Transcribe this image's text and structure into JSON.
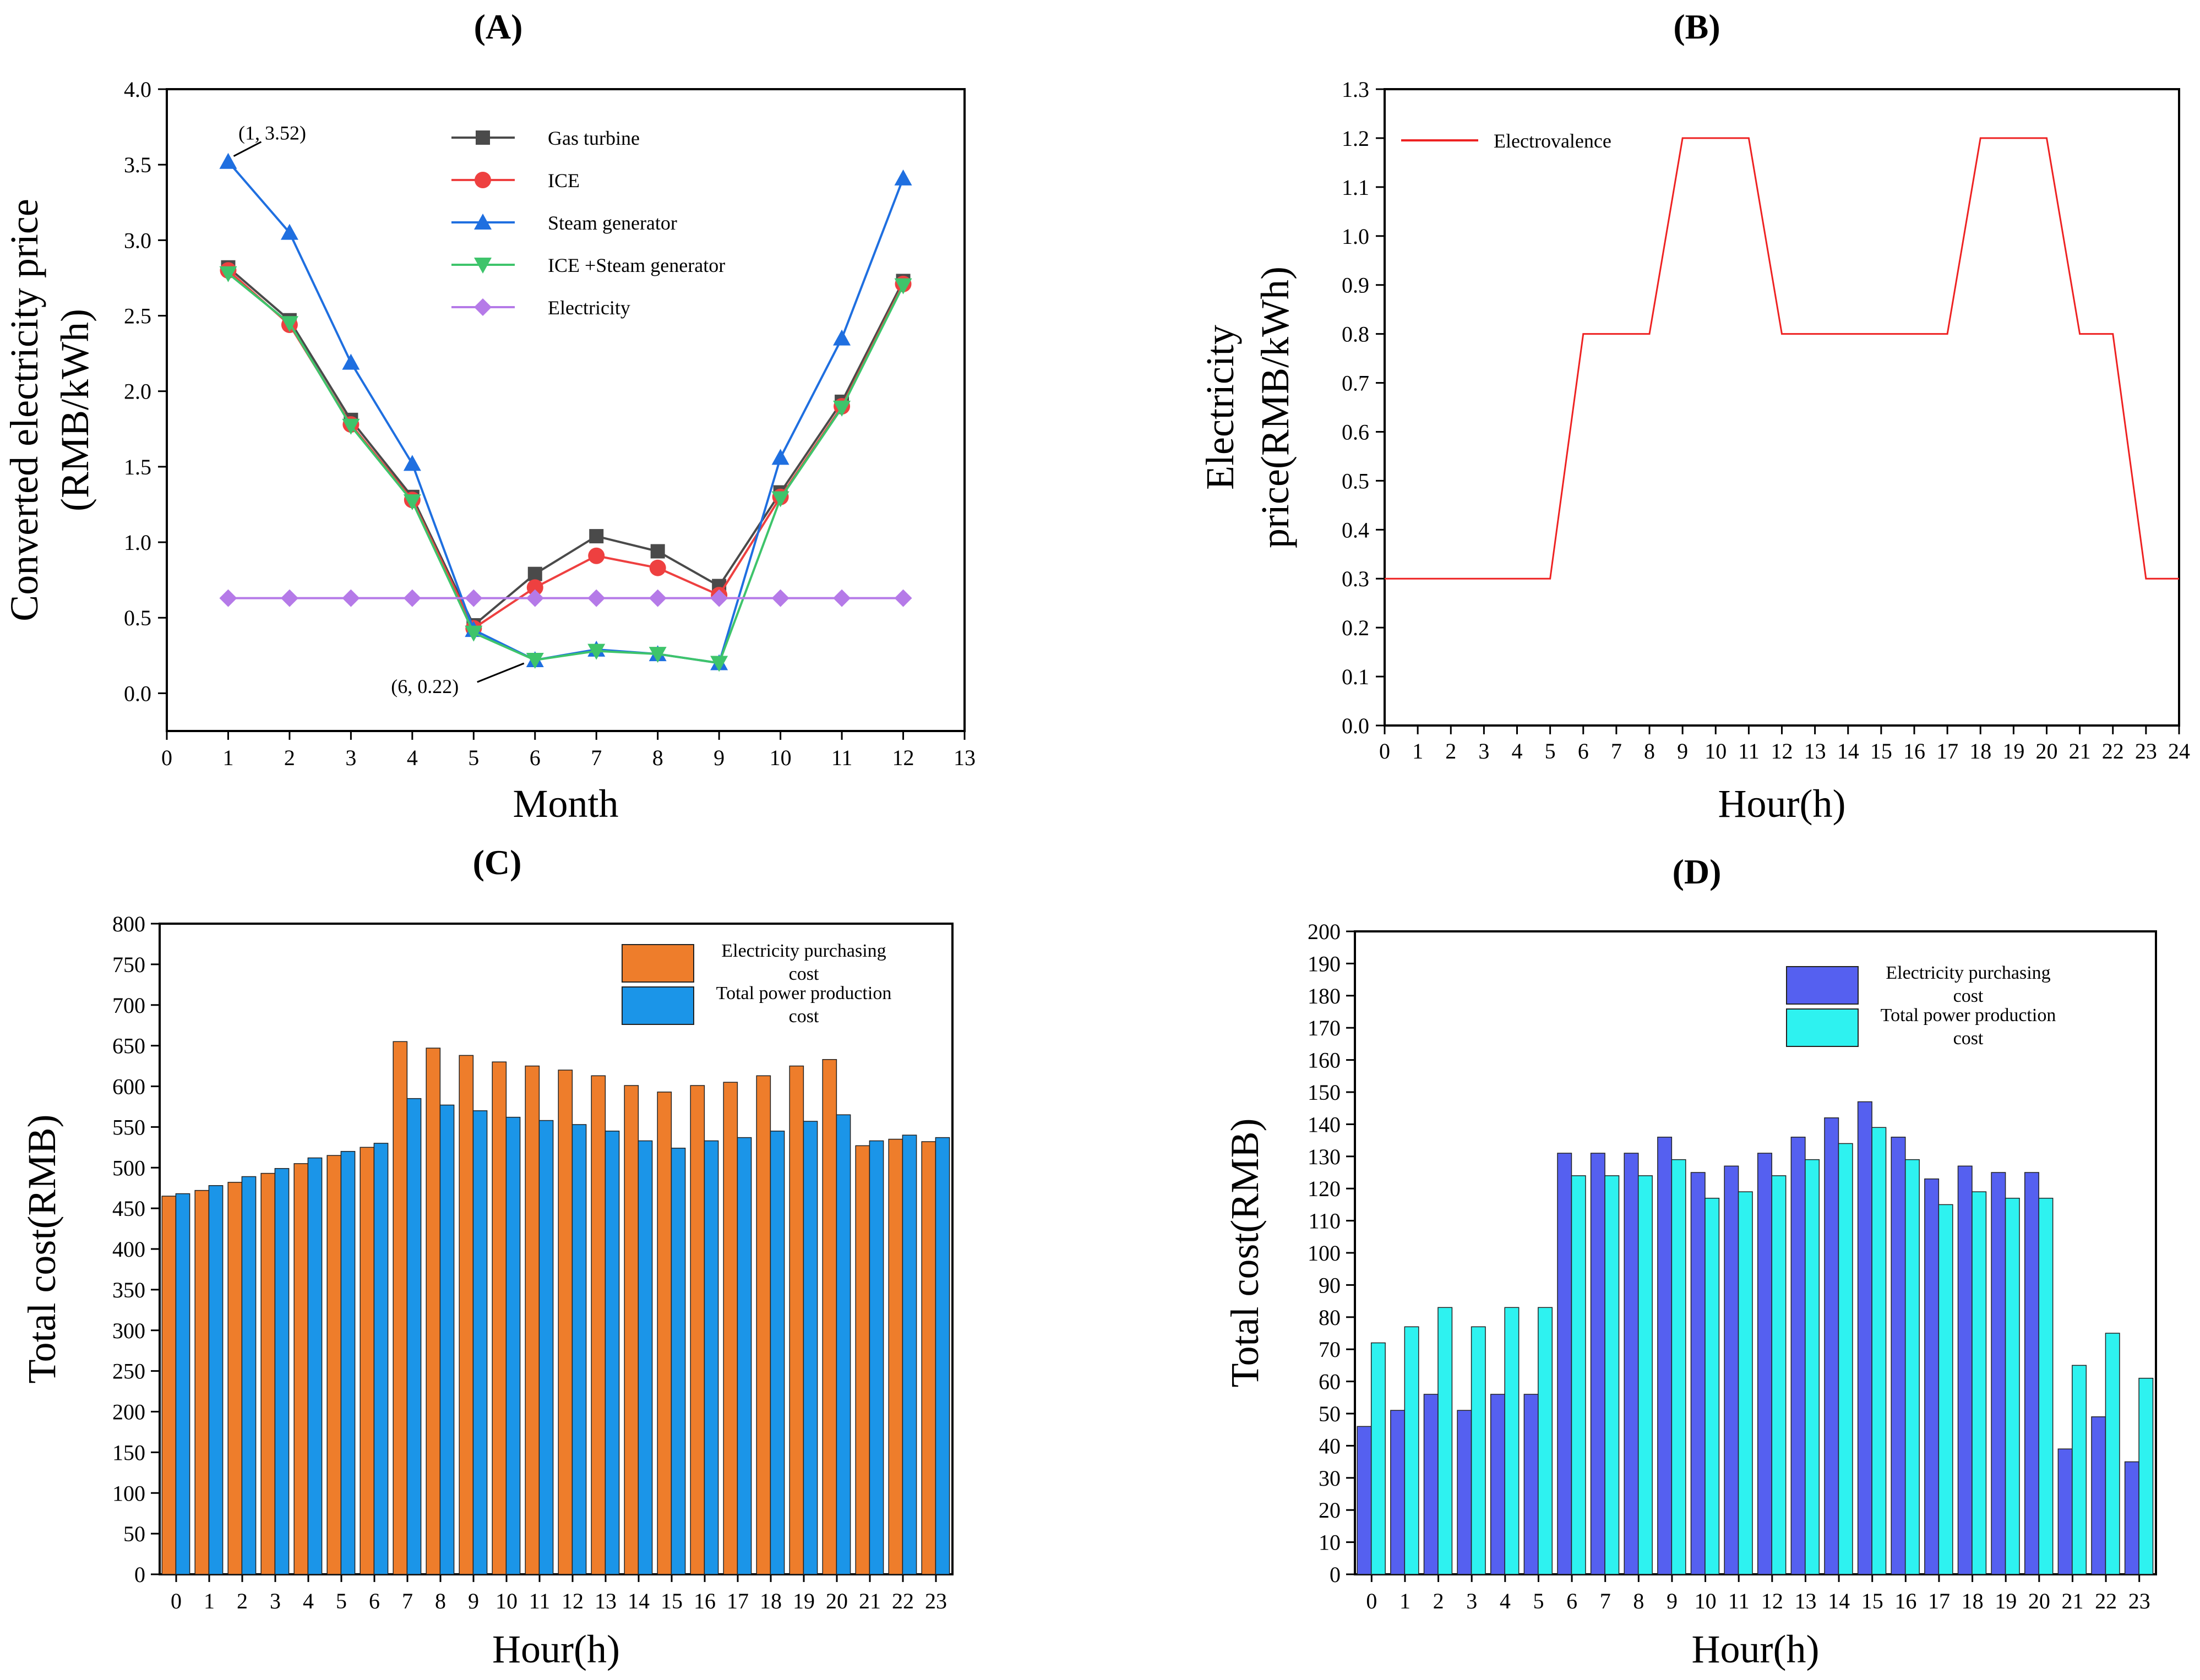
{
  "colors": {
    "gas_turbine": "#4a4a4a",
    "ice": "#ee4040",
    "steam": "#1f6fe0",
    "ice_steam": "#3ec46b",
    "electricity": "#b57ae8",
    "electrovalence": "#ee2222",
    "c_purchase": "#ee7d2b",
    "c_production": "#1b95e8",
    "d_purchase": "#5560f0",
    "d_production": "#2ef2f0"
  },
  "chart_data": [
    {
      "id": "A",
      "panel_label": "(A)",
      "type": "line",
      "xlabel": "Month",
      "ylabel_lines": [
        "Converted electricity price",
        "(RMB/kWh)"
      ],
      "xlim": [
        0,
        13
      ],
      "ylim": [
        -0.25,
        4.0
      ],
      "xticks": [
        0,
        1,
        2,
        3,
        4,
        5,
        6,
        7,
        8,
        9,
        10,
        11,
        12,
        13
      ],
      "yticks": [
        0.0,
        0.5,
        1.0,
        1.5,
        2.0,
        2.5,
        3.0,
        3.5,
        4.0
      ],
      "ytick_labels": [
        "0.0",
        "0.5",
        "1.0",
        "1.5",
        "2.0",
        "2.5",
        "3.0",
        "3.5",
        "4.0"
      ],
      "x": [
        1,
        2,
        3,
        4,
        5,
        6,
        7,
        8,
        9,
        10,
        11,
        12
      ],
      "series": [
        {
          "name": "Gas turbine",
          "marker": "square",
          "color_key": "gas_turbine",
          "values": [
            2.82,
            2.47,
            1.81,
            1.3,
            0.45,
            0.79,
            1.04,
            0.94,
            0.71,
            1.33,
            1.93,
            2.73
          ]
        },
        {
          "name": "ICE",
          "marker": "circle",
          "color_key": "ice",
          "values": [
            2.8,
            2.44,
            1.78,
            1.28,
            0.43,
            0.7,
            0.91,
            0.83,
            0.65,
            1.3,
            1.9,
            2.71
          ]
        },
        {
          "name": "Steam generator",
          "marker": "triangle-up",
          "color_key": "steam",
          "values": [
            3.52,
            3.05,
            2.19,
            1.52,
            0.42,
            0.22,
            0.29,
            0.26,
            0.2,
            1.56,
            2.35,
            3.41
          ]
        },
        {
          "name": "ICE +Steam generator",
          "marker": "triangle-down",
          "color_key": "ice_steam",
          "values": [
            2.78,
            2.45,
            1.77,
            1.27,
            0.4,
            0.22,
            0.28,
            0.26,
            0.2,
            1.29,
            1.89,
            2.7
          ]
        },
        {
          "name": "Electricity",
          "marker": "diamond",
          "color_key": "electricity",
          "values": [
            0.63,
            0.63,
            0.63,
            0.63,
            0.63,
            0.63,
            0.63,
            0.63,
            0.63,
            0.63,
            0.63,
            0.63
          ]
        }
      ],
      "annotations": [
        {
          "text": "(1, 3.52)",
          "x": 1,
          "y": 3.52
        },
        {
          "text": "(6, 0.22)",
          "x": 6,
          "y": 0.22
        }
      ]
    },
    {
      "id": "B",
      "panel_label": "(B)",
      "type": "line",
      "xlabel": "Hour(h)",
      "ylabel_lines": [
        "Electricity",
        "price(RMB/kWh)"
      ],
      "xlim": [
        0,
        24
      ],
      "ylim": [
        0,
        1.3
      ],
      "xticks": [
        0,
        1,
        2,
        3,
        4,
        5,
        6,
        7,
        8,
        9,
        10,
        11,
        12,
        13,
        14,
        15,
        16,
        17,
        18,
        19,
        20,
        21,
        22,
        23,
        24
      ],
      "yticks": [
        0,
        0.1,
        0.2,
        0.3,
        0.4,
        0.5,
        0.6,
        0.7,
        0.8,
        0.9,
        1.0,
        1.1,
        1.2,
        1.3
      ],
      "ytick_labels": [
        "0.0",
        "0.1",
        "0.2",
        "0.3",
        "0.4",
        "0.5",
        "0.6",
        "0.7",
        "0.8",
        "0.9",
        "1.0",
        "1.1",
        "1.2",
        "1.3"
      ],
      "series": [
        {
          "name": "Electrovalence",
          "color_key": "electrovalence",
          "x": [
            0,
            5,
            6,
            8,
            9,
            11,
            12,
            17,
            18,
            20,
            21,
            22,
            23,
            24
          ],
          "values": [
            0.3,
            0.3,
            0.8,
            0.8,
            1.2,
            1.2,
            0.8,
            0.8,
            1.2,
            1.2,
            0.8,
            0.8,
            0.3,
            0.3
          ]
        }
      ]
    },
    {
      "id": "C",
      "panel_label": "(C)",
      "type": "bar",
      "xlabel": "Hour(h)",
      "ylabel_lines": [
        "Total cost(RMB)"
      ],
      "ylim": [
        0,
        800
      ],
      "yticks": [
        0,
        50,
        100,
        150,
        200,
        250,
        300,
        350,
        400,
        450,
        500,
        550,
        600,
        650,
        700,
        750,
        800
      ],
      "categories": [
        "0",
        "1",
        "2",
        "3",
        "4",
        "5",
        "6",
        "7",
        "8",
        "9",
        "10",
        "11",
        "12",
        "13",
        "14",
        "15",
        "16",
        "17",
        "18",
        "19",
        "20",
        "21",
        "22",
        "23"
      ],
      "series": [
        {
          "name_lines": [
            "Electricity purchasing",
            "cost"
          ],
          "color_key": "c_purchase",
          "values": [
            465,
            472,
            482,
            493,
            505,
            515,
            525,
            655,
            647,
            638,
            630,
            625,
            620,
            613,
            601,
            593,
            601,
            605,
            613,
            625,
            633,
            527,
            535,
            532
          ]
        },
        {
          "name_lines": [
            "Total power production",
            "cost"
          ],
          "color_key": "c_production",
          "values": [
            468,
            478,
            489,
            499,
            512,
            520,
            530,
            585,
            577,
            570,
            562,
            558,
            553,
            545,
            533,
            524,
            533,
            537,
            545,
            557,
            565,
            533,
            540,
            537
          ]
        }
      ]
    },
    {
      "id": "D",
      "panel_label": "(D)",
      "type": "bar",
      "xlabel": "Hour(h)",
      "ylabel_lines": [
        "Total cost(RMB)"
      ],
      "ylim": [
        0,
        200
      ],
      "yticks": [
        0,
        10,
        20,
        30,
        40,
        50,
        60,
        70,
        80,
        90,
        100,
        110,
        120,
        130,
        140,
        150,
        160,
        170,
        180,
        190,
        200
      ],
      "categories": [
        "0",
        "1",
        "2",
        "3",
        "4",
        "5",
        "6",
        "7",
        "8",
        "9",
        "10",
        "11",
        "12",
        "13",
        "14",
        "15",
        "16",
        "17",
        "18",
        "19",
        "20",
        "21",
        "22",
        "23"
      ],
      "series": [
        {
          "name_lines": [
            "Electricity purchasing",
            "cost"
          ],
          "color_key": "d_purchase",
          "values": [
            46,
            51,
            56,
            51,
            56,
            56,
            131,
            131,
            131,
            136,
            125,
            127,
            131,
            136,
            142,
            147,
            136,
            123,
            127,
            125,
            125,
            39,
            49,
            35
          ]
        },
        {
          "name_lines": [
            "Total power production",
            "cost"
          ],
          "color_key": "d_production",
          "values": [
            72,
            77,
            83,
            77,
            83,
            83,
            124,
            124,
            124,
            129,
            117,
            119,
            124,
            129,
            134,
            139,
            129,
            115,
            119,
            117,
            117,
            65,
            75,
            61
          ]
        }
      ]
    }
  ]
}
